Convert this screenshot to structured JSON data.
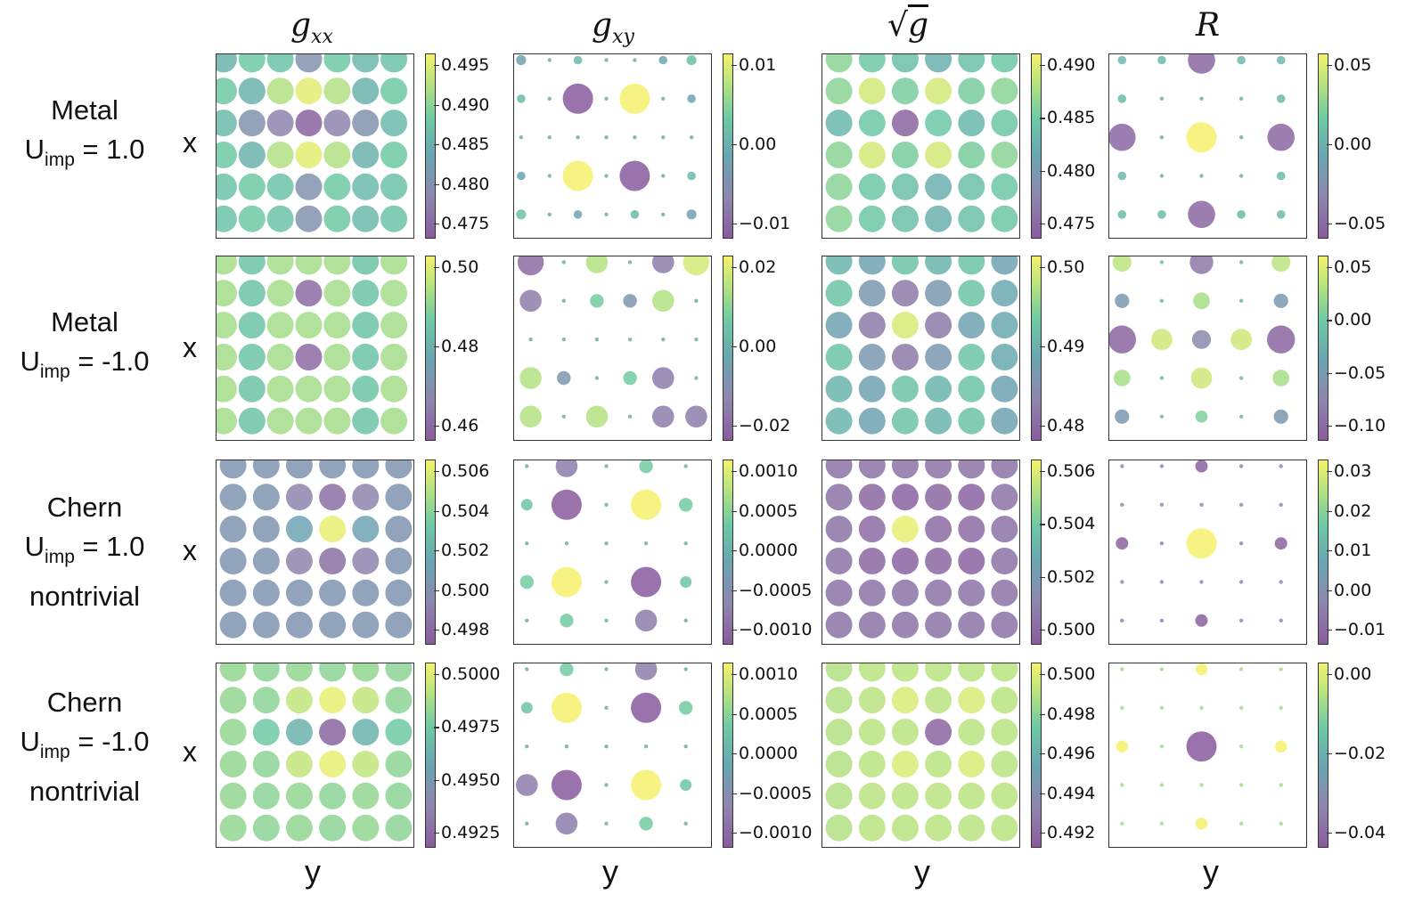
{
  "column_titles": [
    "g_xx",
    "g_xy",
    "√g",
    "R"
  ],
  "row_labels": [
    {
      "line1": "Metal",
      "u_prefix": "U",
      "u_sub": "imp",
      "u_value": " = 1.0",
      "line3": ""
    },
    {
      "line1": "Metal",
      "u_prefix": "U",
      "u_sub": "imp",
      "u_value": " = -1.0",
      "line3": ""
    },
    {
      "line1": "Chern",
      "u_prefix": "U",
      "u_sub": "imp",
      "u_value": " = 1.0",
      "line3": "nontrivial"
    },
    {
      "line1": "Chern",
      "u_prefix": "U",
      "u_sub": "imp",
      "u_value": " = -1.0",
      "line3": "nontrivial"
    }
  ],
  "axis_labels": {
    "x": "x",
    "y": "y"
  },
  "colors": {
    "purple": "#8a5b9d",
    "lavender": "#8e86ad",
    "teal": "#6aa6b1",
    "green": "#6dc9a4",
    "lime": "#b7e380",
    "yellow": "#f4f16c"
  },
  "chart_data": [
    {
      "type": "heatmap",
      "row": 0,
      "col": 0,
      "title": "g_xx",
      "colorbar_ticks": [
        "0.495",
        "0.490",
        "0.485",
        "0.480",
        "0.475"
      ],
      "vmin": 0.473,
      "vmax": 0.496,
      "values": [
        [
          0.485,
          0.488,
          0.487,
          0.48,
          0.488,
          0.486,
          0.487
        ],
        [
          0.488,
          0.485,
          0.492,
          0.495,
          0.492,
          0.485,
          0.488
        ],
        [
          0.486,
          0.48,
          0.478,
          0.474,
          0.478,
          0.48,
          0.486
        ],
        [
          0.488,
          0.485,
          0.492,
          0.495,
          0.492,
          0.485,
          0.488
        ],
        [
          0.487,
          0.488,
          0.487,
          0.48,
          0.488,
          0.486,
          0.487
        ],
        [
          0.487,
          0.488,
          0.487,
          0.48,
          0.488,
          0.486,
          0.487
        ]
      ]
    },
    {
      "type": "heatmap",
      "row": 0,
      "col": 1,
      "title": "g_xy",
      "colorbar_ticks": [
        "0.01",
        "0.00",
        "−0.01"
      ],
      "vmin": -0.016,
      "vmax": 0.016,
      "values": [
        [
          -0.003,
          0,
          0.002,
          0,
          0,
          -0.002,
          0.003
        ],
        [
          0.002,
          0,
          -0.016,
          0,
          0.016,
          0,
          -0.002
        ],
        [
          0,
          0,
          0,
          0,
          0,
          0,
          0
        ],
        [
          -0.002,
          0,
          0.016,
          0,
          -0.016,
          0,
          0.002
        ],
        [
          0.003,
          0,
          -0.002,
          0,
          0.002,
          0,
          -0.003
        ]
      ]
    },
    {
      "type": "heatmap",
      "row": 0,
      "col": 2,
      "title": "√g",
      "colorbar_ticks": [
        "0.490",
        "0.485",
        "0.480",
        "0.475"
      ],
      "vmin": 0.472,
      "vmax": 0.494,
      "values": [
        [
          0.488,
          0.486,
          0.485,
          0.483,
          0.485,
          0.486
        ],
        [
          0.488,
          0.492,
          0.487,
          0.492,
          0.487,
          0.488
        ],
        [
          0.484,
          0.486,
          0.473,
          0.486,
          0.484,
          0.486
        ],
        [
          0.488,
          0.492,
          0.487,
          0.492,
          0.487,
          0.488
        ],
        [
          0.488,
          0.486,
          0.485,
          0.483,
          0.485,
          0.486
        ],
        [
          0.488,
          0.486,
          0.485,
          0.483,
          0.485,
          0.486
        ]
      ]
    },
    {
      "type": "heatmap",
      "row": 0,
      "col": 3,
      "title": "R",
      "colorbar_ticks": [
        "0.05",
        "0.00",
        "−0.05"
      ],
      "vmin": -0.08,
      "vmax": 0.08,
      "values": [
        [
          0.01,
          0.01,
          -0.07,
          0.01,
          0.01
        ],
        [
          0.01,
          0,
          0,
          0,
          0.01
        ],
        [
          -0.07,
          0,
          0.08,
          0,
          -0.07
        ],
        [
          0.01,
          0,
          0,
          0,
          0.01
        ],
        [
          0.01,
          0.01,
          -0.07,
          0.01,
          0.01
        ]
      ]
    },
    {
      "type": "heatmap",
      "row": 1,
      "col": 0,
      "title": "g_xx",
      "colorbar_ticks": [
        "0.50",
        "0.48",
        "0.46"
      ],
      "vmin": 0.445,
      "vmax": 0.502,
      "values": [
        [
          0.49,
          0.48,
          0.49,
          0.49,
          0.49,
          0.48,
          0.49
        ],
        [
          0.49,
          0.48,
          0.49,
          0.45,
          0.49,
          0.48,
          0.49
        ],
        [
          0.49,
          0.48,
          0.49,
          0.49,
          0.49,
          0.48,
          0.49
        ],
        [
          0.49,
          0.48,
          0.49,
          0.45,
          0.49,
          0.48,
          0.49
        ],
        [
          0.49,
          0.48,
          0.49,
          0.49,
          0.49,
          0.48,
          0.49
        ],
        [
          0.49,
          0.48,
          0.49,
          0.49,
          0.49,
          0.48,
          0.49
        ]
      ]
    },
    {
      "type": "heatmap",
      "row": 1,
      "col": 1,
      "title": "g_xy",
      "colorbar_ticks": [
        "0.02",
        "0.00",
        "−0.02"
      ],
      "vmin": -0.03,
      "vmax": 0.03,
      "values": [
        [
          -0.025,
          0,
          0.02,
          0,
          -0.02,
          0.025
        ],
        [
          -0.02,
          0,
          0.01,
          -0.01,
          0.02,
          0
        ],
        [
          0,
          0,
          0,
          0,
          0,
          0
        ],
        [
          0.02,
          -0.01,
          0,
          0.01,
          -0.02,
          0
        ],
        [
          0.02,
          0,
          0.02,
          0,
          -0.02,
          -0.02
        ]
      ]
    },
    {
      "type": "heatmap",
      "row": 1,
      "col": 2,
      "title": "√g",
      "colorbar_ticks": [
        "0.50",
        "0.49",
        "0.48"
      ],
      "vmin": 0.476,
      "vmax": 0.502,
      "values": [
        [
          0.49,
          0.487,
          0.492,
          0.49,
          0.492,
          0.487
        ],
        [
          0.492,
          0.485,
          0.48,
          0.485,
          0.492,
          0.488
        ],
        [
          0.487,
          0.48,
          0.5,
          0.48,
          0.487,
          0.488
        ],
        [
          0.492,
          0.485,
          0.48,
          0.485,
          0.492,
          0.488
        ],
        [
          0.49,
          0.487,
          0.492,
          0.49,
          0.492,
          0.487
        ],
        [
          0.49,
          0.487,
          0.492,
          0.49,
          0.492,
          0.487
        ]
      ]
    },
    {
      "type": "heatmap",
      "row": 1,
      "col": 3,
      "title": "R",
      "colorbar_ticks": [
        "0.05",
        "0.00",
        "−0.05",
        "−0.10"
      ],
      "vmin": -0.11,
      "vmax": 0.09,
      "values": [
        [
          0.06,
          0.0,
          -0.08,
          0.0,
          0.06
        ],
        [
          -0.04,
          0.0,
          0.05,
          0.0,
          -0.04
        ],
        [
          -0.1,
          0.07,
          -0.06,
          0.07,
          -0.1
        ],
        [
          0.05,
          0.0,
          0.07,
          0.0,
          0.05
        ],
        [
          -0.04,
          0.0,
          0.03,
          0.0,
          -0.04
        ]
      ]
    },
    {
      "type": "heatmap",
      "row": 2,
      "col": 0,
      "title": "g_xx",
      "colorbar_ticks": [
        "0.506",
        "0.504",
        "0.502",
        "0.500",
        "0.498"
      ],
      "vmin": 0.4975,
      "vmax": 0.5068,
      "values": [
        [
          0.5005,
          0.5005,
          0.5005,
          0.5005,
          0.5005,
          0.5005
        ],
        [
          0.5005,
          0.5005,
          0.4995,
          0.4985,
          0.4995,
          0.5005
        ],
        [
          0.5005,
          0.5005,
          0.5015,
          0.5065,
          0.5015,
          0.5005
        ],
        [
          0.5005,
          0.5005,
          0.4995,
          0.4985,
          0.4995,
          0.5005
        ],
        [
          0.5005,
          0.5005,
          0.5005,
          0.5005,
          0.5005,
          0.5005
        ],
        [
          0.5005,
          0.5005,
          0.5005,
          0.5005,
          0.5005,
          0.5005
        ]
      ]
    },
    {
      "type": "heatmap",
      "row": 2,
      "col": 1,
      "title": "g_xy",
      "colorbar_ticks": [
        "0.0010",
        "0.0005",
        "0.0000",
        "−0.0005",
        "−0.0010"
      ],
      "vmin": -0.0012,
      "vmax": 0.0012,
      "values": [
        [
          0,
          -0.0008,
          0,
          0.0004,
          0
        ],
        [
          0.0003,
          -0.0012,
          0,
          0.0012,
          0.0004
        ],
        [
          0,
          0,
          0,
          0,
          0
        ],
        [
          0.0004,
          0.0012,
          0,
          -0.0012,
          0.0003
        ],
        [
          0,
          0.0004,
          0,
          -0.0008,
          0
        ]
      ]
    },
    {
      "type": "heatmap",
      "row": 2,
      "col": 2,
      "title": "√g",
      "colorbar_ticks": [
        "0.506",
        "0.504",
        "0.502",
        "0.500"
      ],
      "vmin": 0.4985,
      "vmax": 0.5068,
      "values": [
        [
          0.4995,
          0.4995,
          0.4995,
          0.4995,
          0.4995,
          0.4995
        ],
        [
          0.4995,
          0.499,
          0.4988,
          0.499,
          0.4988,
          0.4995
        ],
        [
          0.4995,
          0.4992,
          0.5065,
          0.4992,
          0.4992,
          0.4995
        ],
        [
          0.4995,
          0.499,
          0.4988,
          0.499,
          0.4988,
          0.4995
        ],
        [
          0.4995,
          0.4995,
          0.4995,
          0.4995,
          0.4995,
          0.4995
        ],
        [
          0.4995,
          0.4995,
          0.4995,
          0.4995,
          0.4995,
          0.4995
        ]
      ]
    },
    {
      "type": "heatmap",
      "row": 2,
      "col": 3,
      "title": "R",
      "colorbar_ticks": [
        "0.03",
        "0.02",
        "0.01",
        "0.00",
        "−0.01"
      ],
      "vmin": -0.012,
      "vmax": 0.035,
      "values": [
        [
          0.0,
          0.0,
          -0.01,
          0.0,
          0.0
        ],
        [
          0.0,
          0.0,
          0.0,
          0.0,
          0.0
        ],
        [
          -0.01,
          0.0,
          0.035,
          0.0,
          -0.01
        ],
        [
          0.0,
          0.0,
          0.0,
          0.0,
          0.0
        ],
        [
          0.0,
          0.0,
          -0.01,
          0.0,
          0.0
        ]
      ]
    },
    {
      "type": "heatmap",
      "row": 3,
      "col": 0,
      "title": "g_xx",
      "colorbar_ticks": [
        "0.5000",
        "0.4975",
        "0.4950",
        "0.4925"
      ],
      "vmin": 0.4915,
      "vmax": 0.5022,
      "values": [
        [
          0.4995,
          0.4993,
          0.4995,
          0.4993,
          0.4995,
          0.4993
        ],
        [
          0.4995,
          0.4993,
          0.5008,
          0.5018,
          0.5008,
          0.4993
        ],
        [
          0.4995,
          0.4985,
          0.497,
          0.492,
          0.497,
          0.4985
        ],
        [
          0.4995,
          0.4993,
          0.5008,
          0.5018,
          0.5008,
          0.4993
        ],
        [
          0.4995,
          0.4993,
          0.4995,
          0.4993,
          0.4995,
          0.4993
        ],
        [
          0.4995,
          0.4993,
          0.4995,
          0.4993,
          0.4995,
          0.4993
        ]
      ]
    },
    {
      "type": "heatmap",
      "row": 3,
      "col": 1,
      "title": "g_xy",
      "colorbar_ticks": [
        "0.0010",
        "0.0005",
        "0.0000",
        "−0.0005",
        "−0.0010"
      ],
      "vmin": -0.0012,
      "vmax": 0.0012,
      "values": [
        [
          0,
          0.0004,
          0,
          -0.0008,
          0
        ],
        [
          0.0003,
          0.0012,
          0,
          -0.0012,
          0.0004
        ],
        [
          0,
          0,
          0,
          0,
          0
        ],
        [
          -0.0008,
          -0.0012,
          0,
          0.0012,
          0.0003
        ],
        [
          0,
          -0.0008,
          0,
          0.0004,
          0
        ]
      ]
    },
    {
      "type": "heatmap",
      "row": 3,
      "col": 2,
      "title": "√g",
      "colorbar_ticks": [
        "0.500",
        "0.498",
        "0.496",
        "0.494",
        "0.492"
      ],
      "vmin": 0.4915,
      "vmax": 0.5012,
      "values": [
        [
          0.4995,
          0.4997,
          0.4997,
          0.4997,
          0.4997,
          0.4997
        ],
        [
          0.4995,
          0.4997,
          0.5005,
          0.4997,
          0.5005,
          0.4997
        ],
        [
          0.4995,
          0.4997,
          0.4997,
          0.492,
          0.4997,
          0.4997
        ],
        [
          0.4995,
          0.4997,
          0.5005,
          0.4997,
          0.5005,
          0.4997
        ],
        [
          0.4995,
          0.4997,
          0.4997,
          0.4997,
          0.4997,
          0.4997
        ],
        [
          0.4995,
          0.4997,
          0.4997,
          0.4997,
          0.4997,
          0.4997
        ]
      ]
    },
    {
      "type": "heatmap",
      "row": 3,
      "col": 3,
      "title": "R",
      "colorbar_ticks": [
        "0.00",
        "−0.02",
        "−0.04"
      ],
      "vmin": -0.045,
      "vmax": 0.012,
      "values": [
        [
          0.0,
          0.0,
          0.012,
          0.0,
          0.0
        ],
        [
          0.0,
          0.0,
          0.0,
          0.0,
          0.0
        ],
        [
          0.012,
          0.0,
          -0.045,
          0.0,
          0.012
        ],
        [
          0.0,
          0.0,
          0.0,
          0.0,
          0.0
        ],
        [
          0.0,
          0.0,
          0.012,
          0.0,
          0.0
        ]
      ]
    }
  ]
}
